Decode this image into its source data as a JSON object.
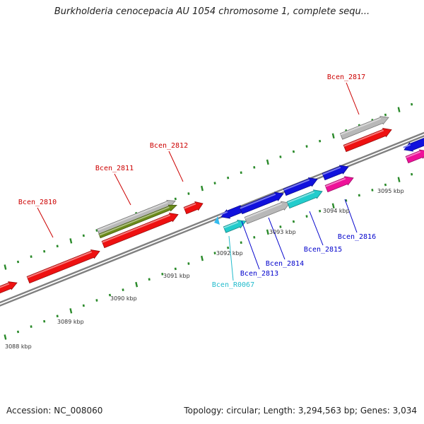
{
  "title": "Burkholderia cenocepacia AU 1054 chromosome 1, complete sequ...",
  "footer": {
    "accession": "Accession: NC_008060",
    "topology": "Topology: circular; Length: 3,294,563 bp; Genes: 3,034"
  },
  "colors": {
    "background": "#ffffff",
    "backbone": "#808080",
    "tick": "#2a8a2a",
    "gene_red": "#ee1111",
    "gene_blue": "#1111dd",
    "gene_cyan": "#22cccc",
    "gene_magenta": "#ee1199",
    "gene_gray": "#b8b8b8",
    "gene_olive": "#6a8a1a",
    "label_red": "#cc0000",
    "label_blue": "#0000cc",
    "label_cyan": "#22bbcc"
  },
  "kbp_labels": [
    "3088 kbp",
    "3089 kbp",
    "3090 kbp",
    "3091 kbp",
    "3092 kbp",
    "3093 kbp",
    "3094 kbp",
    "3095 kbp"
  ],
  "gene_labels": [
    {
      "id": "bcen-2810",
      "text": "Bcen_2810",
      "color": "label_red"
    },
    {
      "id": "bcen-2811",
      "text": "Bcen_2811",
      "color": "label_red"
    },
    {
      "id": "bcen-2812",
      "text": "Bcen_2812",
      "color": "label_red"
    },
    {
      "id": "bcen-2817",
      "text": "Bcen_2817",
      "color": "label_red"
    },
    {
      "id": "bcen-2813",
      "text": "Bcen_2813",
      "color": "label_blue"
    },
    {
      "id": "bcen-2814",
      "text": "Bcen_2814",
      "color": "label_blue"
    },
    {
      "id": "bcen-2815",
      "text": "Bcen_2815",
      "color": "label_blue"
    },
    {
      "id": "bcen-2816",
      "text": "Bcen_2816",
      "color": "label_blue"
    },
    {
      "id": "bcen-r0067",
      "text": "Bcen_R0067",
      "color": "label_cyan"
    }
  ]
}
